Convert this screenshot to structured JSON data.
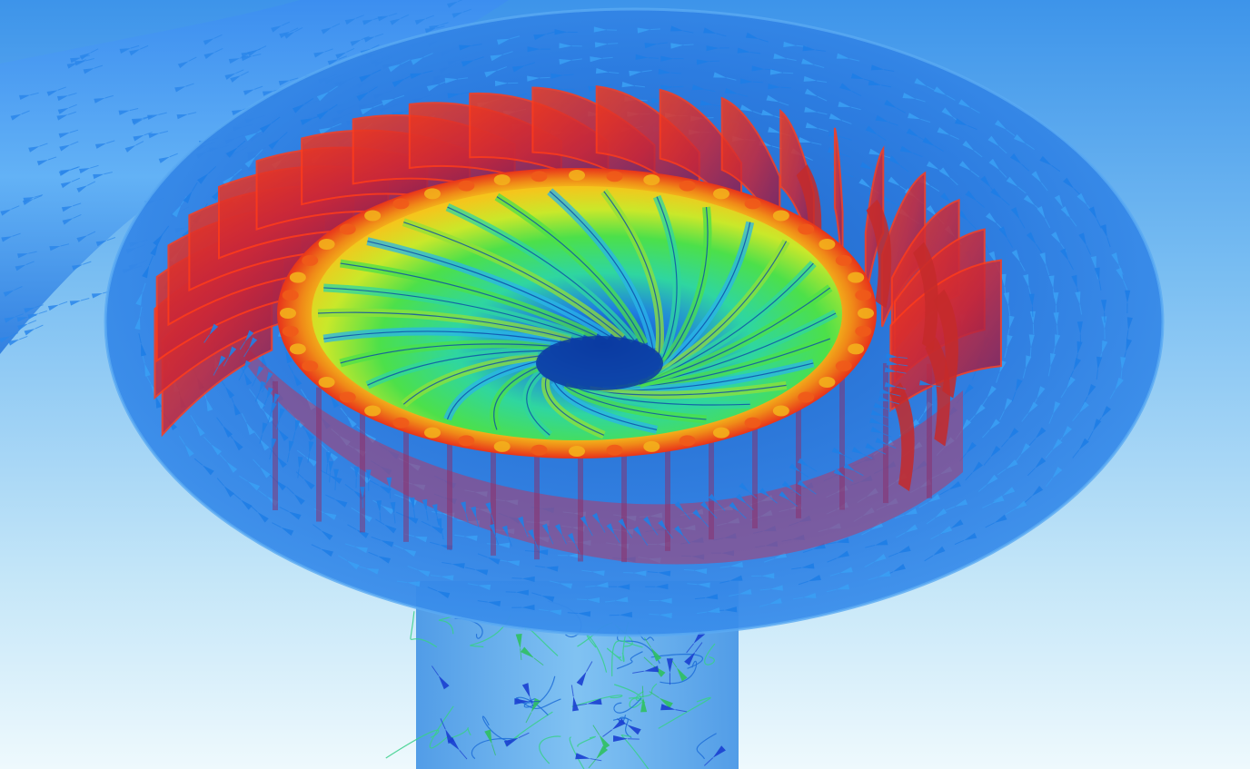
{
  "scene": {
    "kind": "cfd-turbine-visualization",
    "description_visible_text": [],
    "colors": {
      "background_top": "#3f97ec",
      "background_bottom": "#eaf7fc",
      "casing": "#2e7fe0",
      "guide_vanes": "#e8321e",
      "runner_high": "#f2e21a",
      "runner_mid": "#2fd34a",
      "runner_low": "#1f78e0",
      "arrows": "#1e86e8",
      "draft_tube": "#4aa3e8"
    },
    "components": [
      "inlet-pipe",
      "spiral-casing",
      "stay-vanes",
      "guide-vanes",
      "runner",
      "draft-tube",
      "velocity-vectors",
      "streamlines"
    ]
  }
}
